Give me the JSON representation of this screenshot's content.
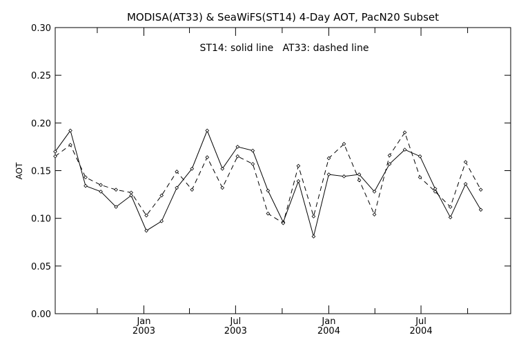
{
  "chart_data": {
    "type": "line",
    "title": "MODISA(AT33) & SeaWiFS(ST14) 4-Day AOT, PacN20 Subset",
    "annotation": "ST14: solid line   AT33: dashed line",
    "ylabel": "AOT",
    "xlabel": "",
    "ylim": [
      0.0,
      0.3
    ],
    "xlim": [
      "2002-07-10",
      "2004-12-25"
    ],
    "grid": false,
    "y_ticks": [
      0.0,
      0.05,
      0.1,
      0.15,
      0.2,
      0.25,
      0.3
    ],
    "y_tick_labels": [
      "0.00",
      "0.05",
      "0.10",
      "0.15",
      "0.20",
      "0.25",
      "0.30"
    ],
    "x_major_ticks": [
      {
        "date": "2003-01-01",
        "month": "Jan",
        "year": "2003"
      },
      {
        "date": "2003-07-01",
        "month": "Jul",
        "year": "2003"
      },
      {
        "date": "2004-01-01",
        "month": "Jan",
        "year": "2004"
      },
      {
        "date": "2004-07-01",
        "month": "Jul",
        "year": "2004"
      }
    ],
    "x_minor_ticks": [
      "2002-10-01",
      "2003-04-01",
      "2003-10-01",
      "2004-04-01",
      "2004-10-01"
    ],
    "series": [
      {
        "name": "ST14",
        "style": "solid",
        "points": [
          {
            "date": "2002-07-10",
            "value": 0.17
          },
          {
            "date": "2002-08-09",
            "value": 0.192
          },
          {
            "date": "2002-09-08",
            "value": 0.134
          },
          {
            "date": "2002-10-08",
            "value": 0.128
          },
          {
            "date": "2002-11-07",
            "value": 0.112
          },
          {
            "date": "2002-12-07",
            "value": 0.124
          },
          {
            "date": "2003-01-06",
            "value": 0.087
          },
          {
            "date": "2003-02-05",
            "value": 0.097
          },
          {
            "date": "2003-03-07",
            "value": 0.132
          },
          {
            "date": "2003-04-06",
            "value": 0.152
          },
          {
            "date": "2003-05-06",
            "value": 0.192
          },
          {
            "date": "2003-06-05",
            "value": 0.152
          },
          {
            "date": "2003-07-05",
            "value": 0.175
          },
          {
            "date": "2003-08-04",
            "value": 0.171
          },
          {
            "date": "2003-09-03",
            "value": 0.129
          },
          {
            "date": "2003-10-03",
            "value": 0.096
          },
          {
            "date": "2003-11-02",
            "value": 0.139
          },
          {
            "date": "2003-12-02",
            "value": 0.081
          },
          {
            "date": "2004-01-01",
            "value": 0.146
          },
          {
            "date": "2004-01-31",
            "value": 0.144
          },
          {
            "date": "2004-03-01",
            "value": 0.146
          },
          {
            "date": "2004-03-31",
            "value": 0.128
          },
          {
            "date": "2004-04-30",
            "value": 0.157
          },
          {
            "date": "2004-05-30",
            "value": 0.172
          },
          {
            "date": "2004-06-29",
            "value": 0.165
          },
          {
            "date": "2004-07-29",
            "value": 0.131
          },
          {
            "date": "2004-08-28",
            "value": 0.101
          },
          {
            "date": "2004-09-27",
            "value": 0.136
          },
          {
            "date": "2004-10-27",
            "value": 0.109
          }
        ]
      },
      {
        "name": "AT33",
        "style": "dashed",
        "points": [
          {
            "date": "2002-07-10",
            "value": 0.165
          },
          {
            "date": "2002-08-09",
            "value": 0.177
          },
          {
            "date": "2002-09-08",
            "value": 0.143
          },
          {
            "date": "2002-10-08",
            "value": 0.135
          },
          {
            "date": "2002-11-07",
            "value": 0.13
          },
          {
            "date": "2002-12-07",
            "value": 0.127
          },
          {
            "date": "2003-01-06",
            "value": 0.103
          },
          {
            "date": "2003-02-05",
            "value": 0.124
          },
          {
            "date": "2003-03-07",
            "value": 0.149
          },
          {
            "date": "2003-04-06",
            "value": 0.13
          },
          {
            "date": "2003-05-06",
            "value": 0.164
          },
          {
            "date": "2003-06-05",
            "value": 0.132
          },
          {
            "date": "2003-07-05",
            "value": 0.165
          },
          {
            "date": "2003-08-04",
            "value": 0.157
          },
          {
            "date": "2003-09-03",
            "value": 0.105
          },
          {
            "date": "2003-10-03",
            "value": 0.095
          },
          {
            "date": "2003-11-02",
            "value": 0.155
          },
          {
            "date": "2003-12-02",
            "value": 0.102
          },
          {
            "date": "2004-01-01",
            "value": 0.163
          },
          {
            "date": "2004-01-31",
            "value": 0.178
          },
          {
            "date": "2004-03-01",
            "value": 0.14
          },
          {
            "date": "2004-03-31",
            "value": 0.104
          },
          {
            "date": "2004-04-30",
            "value": 0.166
          },
          {
            "date": "2004-05-30",
            "value": 0.19
          },
          {
            "date": "2004-06-29",
            "value": 0.143
          },
          {
            "date": "2004-07-29",
            "value": 0.128
          },
          {
            "date": "2004-08-28",
            "value": 0.112
          },
          {
            "date": "2004-09-27",
            "value": 0.159
          },
          {
            "date": "2004-10-27",
            "value": 0.13
          }
        ]
      }
    ]
  }
}
